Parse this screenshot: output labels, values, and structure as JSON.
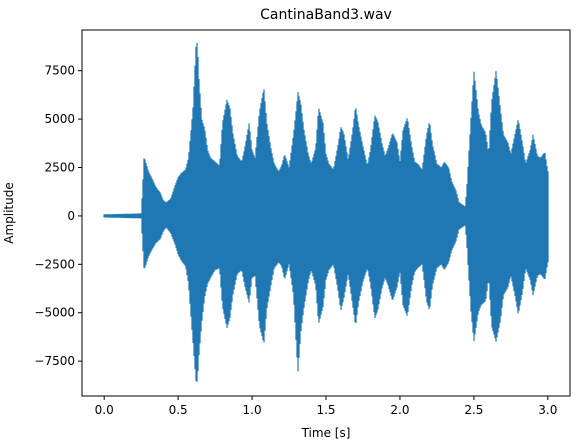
{
  "chart_data": {
    "type": "line",
    "title": "CantinaBand3.wav",
    "xlabel": "Time [s]",
    "ylabel": "Amplitude",
    "xlim": [
      -0.15,
      3.15
    ],
    "ylim": [
      -9300,
      9600
    ],
    "xticks": [
      0.0,
      0.5,
      1.0,
      1.5,
      2.0,
      2.5,
      3.0
    ],
    "xtick_labels": [
      "0.0",
      "0.5",
      "1.0",
      "1.5",
      "2.0",
      "2.5",
      "3.0"
    ],
    "yticks": [
      -7500,
      -5000,
      -2500,
      0,
      2500,
      5000,
      7500
    ],
    "ytick_labels": [
      "−7500",
      "−5000",
      "−2500",
      "0",
      "2500",
      "5000",
      "7500"
    ],
    "grid": false,
    "series_color": "#1f77b4",
    "series": [
      {
        "x": [
          0.0,
          0.05,
          0.1,
          0.15,
          0.2,
          0.25,
          0.26,
          0.27,
          0.28,
          0.3,
          0.32,
          0.35,
          0.38,
          0.4,
          0.42,
          0.45,
          0.48,
          0.5,
          0.52,
          0.55,
          0.57,
          0.6,
          0.62,
          0.63,
          0.64,
          0.66,
          0.68,
          0.7,
          0.72,
          0.75,
          0.78,
          0.8,
          0.83,
          0.85,
          0.87,
          0.9,
          0.93,
          0.95,
          0.98,
          1.0,
          1.02,
          1.05,
          1.08,
          1.1,
          1.13,
          1.15,
          1.18,
          1.2,
          1.22,
          1.25,
          1.28,
          1.3,
          1.31,
          1.33,
          1.35,
          1.38,
          1.4,
          1.43,
          1.45,
          1.48,
          1.5,
          1.52,
          1.55,
          1.58,
          1.6,
          1.62,
          1.65,
          1.68,
          1.7,
          1.72,
          1.75,
          1.78,
          1.8,
          1.83,
          1.85,
          1.88,
          1.9,
          1.92,
          1.95,
          1.98,
          2.0,
          2.02,
          2.05,
          2.08,
          2.1,
          2.12,
          2.15,
          2.18,
          2.2,
          2.22,
          2.25,
          2.28,
          2.3,
          2.33,
          2.35,
          2.38,
          2.4,
          2.42,
          2.44,
          2.45,
          2.46,
          2.48,
          2.5,
          2.53,
          2.55,
          2.58,
          2.6,
          2.62,
          2.65,
          2.68,
          2.7,
          2.73,
          2.75,
          2.78,
          2.8,
          2.83,
          2.85,
          2.88,
          2.9,
          2.93,
          2.95,
          2.98,
          3.0
        ],
        "max": [
          80,
          90,
          100,
          110,
          120,
          130,
          1500,
          3100,
          2800,
          2300,
          2000,
          1500,
          1200,
          800,
          700,
          900,
          1600,
          2000,
          2200,
          2400,
          3000,
          5500,
          8700,
          9000,
          7200,
          5000,
          4500,
          3400,
          3000,
          2800,
          2600,
          4800,
          6000,
          5600,
          4300,
          3100,
          2800,
          3500,
          4800,
          3400,
          3000,
          5400,
          6600,
          4800,
          3400,
          2700,
          2300,
          2600,
          3200,
          2500,
          4200,
          5600,
          6400,
          5800,
          4500,
          3200,
          2700,
          3500,
          5600,
          4800,
          3200,
          2700,
          2400,
          3600,
          4600,
          4300,
          2900,
          4400,
          5700,
          4700,
          3600,
          2600,
          3400,
          5200,
          4900,
          3700,
          3100,
          3500,
          4300,
          3800,
          2800,
          4400,
          5100,
          3600,
          2800,
          2700,
          2400,
          4200,
          4900,
          3700,
          2700,
          2500,
          2800,
          2500,
          1800,
          1300,
          700,
          600,
          500,
          1200,
          2500,
          5000,
          7500,
          5400,
          4700,
          4300,
          3200,
          5900,
          7500,
          5500,
          4200,
          3800,
          3200,
          4300,
          5000,
          3700,
          2700,
          3400,
          4200,
          3100,
          3000,
          3300,
          2300
        ],
        "min": [
          -80,
          -90,
          -100,
          -110,
          -120,
          -130,
          -1500,
          -2800,
          -2600,
          -2100,
          -1800,
          -1400,
          -1200,
          -800,
          -600,
          -900,
          -1500,
          -2000,
          -2300,
          -2600,
          -3500,
          -6500,
          -8500,
          -8600,
          -7300,
          -5500,
          -4200,
          -3500,
          -3200,
          -2800,
          -2700,
          -4700,
          -5800,
          -5300,
          -4100,
          -3000,
          -2800,
          -3600,
          -4500,
          -3200,
          -3100,
          -5700,
          -6600,
          -4800,
          -3500,
          -2700,
          -2400,
          -2600,
          -3300,
          -2500,
          -4100,
          -6800,
          -8100,
          -6000,
          -4800,
          -3400,
          -2800,
          -3600,
          -5600,
          -4700,
          -3300,
          -2800,
          -2500,
          -3800,
          -4900,
          -4300,
          -3000,
          -4600,
          -5700,
          -4500,
          -3400,
          -2700,
          -3500,
          -5300,
          -4900,
          -3700,
          -3200,
          -3600,
          -4400,
          -3700,
          -2900,
          -4600,
          -5200,
          -3600,
          -2900,
          -2700,
          -2500,
          -4400,
          -4900,
          -3600,
          -2700,
          -2500,
          -2800,
          -2400,
          -1800,
          -1300,
          -700,
          -600,
          -500,
          -1200,
          -2500,
          -4900,
          -6500,
          -5000,
          -4600,
          -4400,
          -3200,
          -5700,
          -6500,
          -5400,
          -4100,
          -3700,
          -3100,
          -4200,
          -5100,
          -3900,
          -2700,
          -3300,
          -4100,
          -3100,
          -3000,
          -3300,
          -2400
        ]
      }
    ]
  }
}
